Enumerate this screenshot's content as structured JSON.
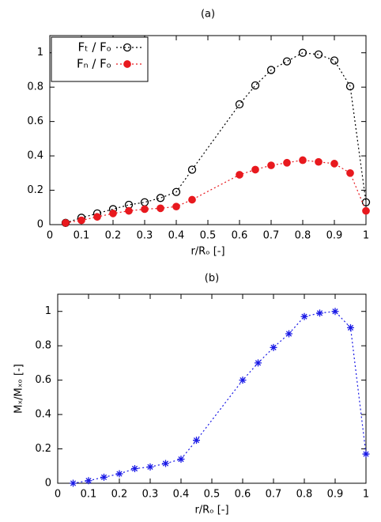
{
  "chart_data": [
    {
      "type": "line",
      "title": "(a)",
      "xlabel": "r/Rₒ [-]",
      "x": [
        0.05,
        0.1,
        0.15,
        0.2,
        0.25,
        0.3,
        0.35,
        0.4,
        0.45,
        0.6,
        0.65,
        0.7,
        0.75,
        0.8,
        0.85,
        0.9,
        0.95,
        1.0
      ],
      "series": [
        {
          "name": "Fₜ / Fₒ",
          "color": "#000000",
          "marker": "open-circle",
          "values": [
            0.01,
            0.04,
            0.065,
            0.09,
            0.115,
            0.13,
            0.155,
            0.19,
            0.32,
            0.7,
            0.81,
            0.9,
            0.95,
            1.0,
            0.99,
            0.955,
            0.805,
            0.13
          ]
        },
        {
          "name": "Fₙ / Fₒ",
          "color": "#e8191e",
          "marker": "filled-circle",
          "values": [
            0.01,
            0.025,
            0.045,
            0.065,
            0.08,
            0.09,
            0.095,
            0.105,
            0.145,
            0.29,
            0.32,
            0.345,
            0.36,
            0.375,
            0.365,
            0.355,
            0.3,
            0.08
          ]
        }
      ],
      "xlim": [
        0,
        1
      ],
      "ylim": [
        0,
        1.1
      ],
      "xticks": [
        0,
        0.1,
        0.2,
        0.3,
        0.4,
        0.5,
        0.6,
        0.7,
        0.8,
        0.9,
        1
      ],
      "yticks": [
        0,
        0.2,
        0.4,
        0.6,
        0.8,
        1
      ],
      "legend": "top-left"
    },
    {
      "type": "line",
      "title": "(b)",
      "xlabel": "r/Rₒ [-]",
      "ylabel": "Mₓ/Mₓₒ [-]",
      "x": [
        0.05,
        0.1,
        0.15,
        0.2,
        0.25,
        0.3,
        0.35,
        0.4,
        0.45,
        0.6,
        0.65,
        0.7,
        0.75,
        0.8,
        0.85,
        0.9,
        0.95,
        1.0
      ],
      "series": [
        {
          "color": "#1a1ae6",
          "marker": "star",
          "values": [
            0.0,
            0.015,
            0.035,
            0.055,
            0.085,
            0.095,
            0.115,
            0.14,
            0.25,
            0.6,
            0.7,
            0.79,
            0.87,
            0.97,
            0.99,
            1.0,
            0.905,
            0.17
          ]
        }
      ],
      "xlim": [
        0,
        1
      ],
      "ylim": [
        0,
        1.1
      ],
      "xticks": [
        0,
        0.1,
        0.2,
        0.3,
        0.4,
        0.5,
        0.6,
        0.7,
        0.8,
        0.9,
        1
      ],
      "yticks": [
        0,
        0.2,
        0.4,
        0.6,
        0.8,
        1
      ]
    }
  ]
}
